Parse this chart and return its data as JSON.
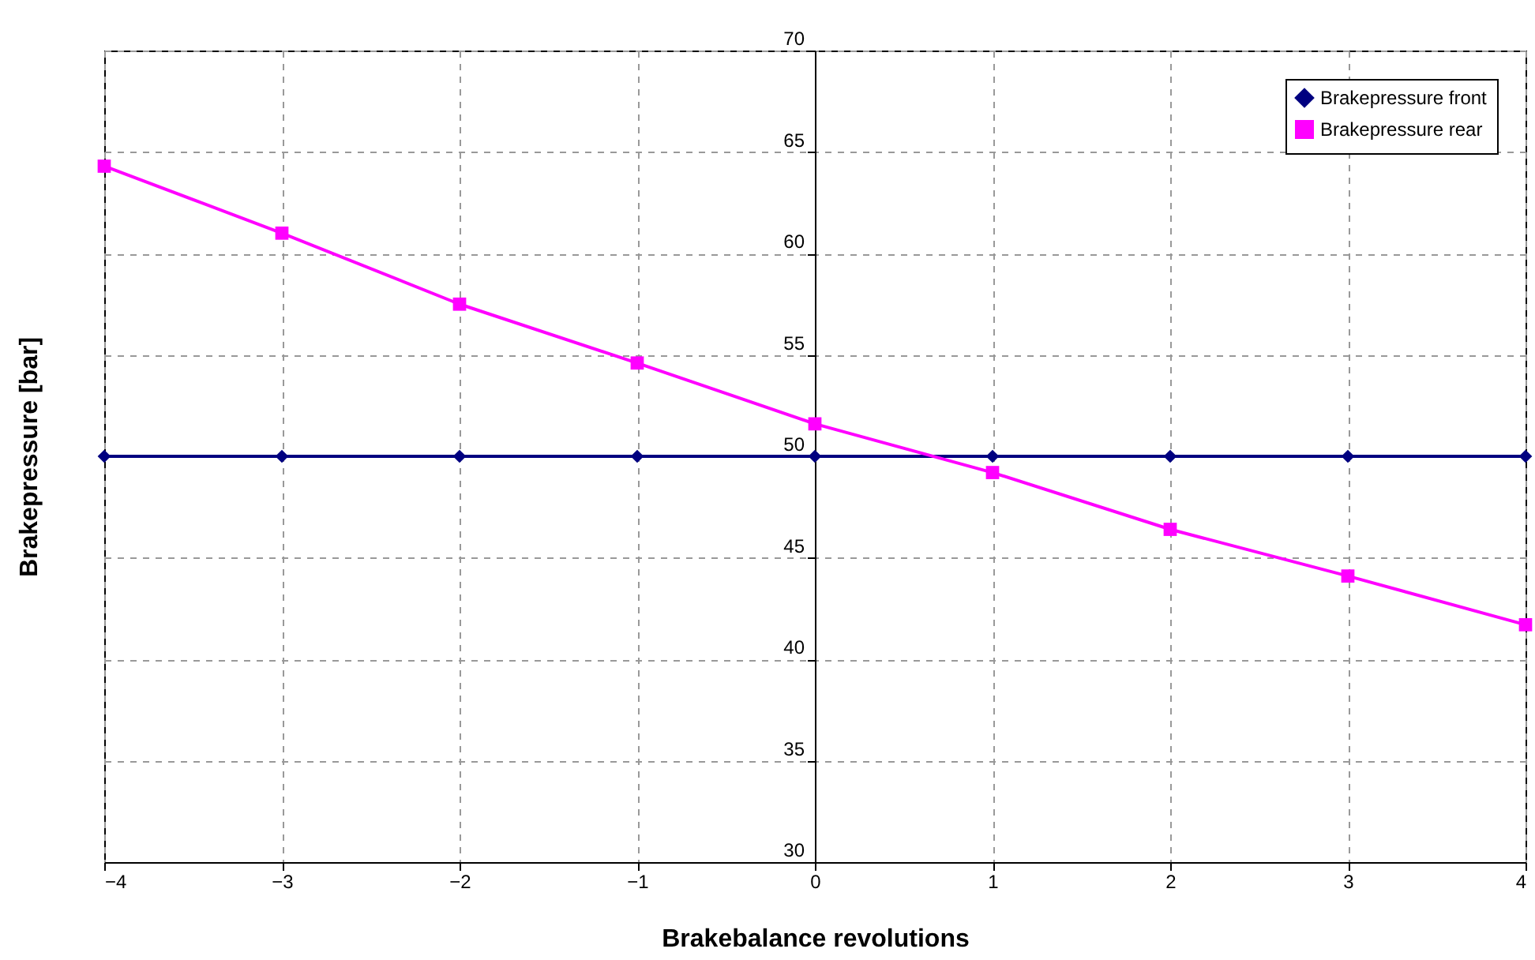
{
  "chart_data": {
    "type": "line",
    "xlabel": "Brakebalance revolutions",
    "ylabel": "Brakepressure [bar]",
    "x": [
      -4,
      -3,
      -2,
      -1,
      0,
      1,
      2,
      3,
      4
    ],
    "series": [
      {
        "name": "Brakepressure front",
        "color": "#000080",
        "marker": "diamond",
        "values": [
          50,
          50,
          50,
          50,
          50,
          50,
          50,
          50,
          50
        ]
      },
      {
        "name": "Brakepressure rear",
        "color": "#ff00ff",
        "marker": "square",
        "values": [
          64.3,
          61.0,
          57.5,
          54.6,
          51.6,
          49.2,
          46.4,
          44.1,
          41.7
        ]
      }
    ],
    "xlim": [
      -4,
      4
    ],
    "xticks": [
      -4,
      -3,
      -2,
      -1,
      0,
      1,
      2,
      3,
      4
    ],
    "ylim": [
      30,
      70
    ],
    "yticks": [
      30,
      35,
      40,
      45,
      50,
      55,
      60,
      65,
      70
    ],
    "grid": true,
    "legend": "top right",
    "line_style": "solid"
  }
}
